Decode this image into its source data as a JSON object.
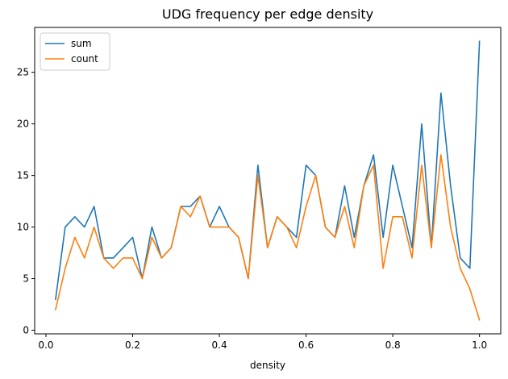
{
  "chart_data": {
    "type": "line",
    "title": "UDG frequency per edge density",
    "xlabel": "density",
    "ylabel": "",
    "xlim": [
      -0.026,
      1.049
    ],
    "ylim": [
      -0.35,
      29.35
    ],
    "xticks": [
      0.0,
      0.2,
      0.4,
      0.6,
      0.8,
      1.0
    ],
    "xtick_labels": [
      "0.0",
      "0.2",
      "0.4",
      "0.6",
      "0.8",
      "1.0"
    ],
    "yticks": [
      0,
      5,
      10,
      15,
      20,
      25
    ],
    "ytick_labels": [
      "0",
      "5",
      "10",
      "15",
      "20",
      "25"
    ],
    "grid": false,
    "legend_position": "top-left",
    "x": [
      0.0222,
      0.0444,
      0.0667,
      0.0889,
      0.1111,
      0.1333,
      0.1556,
      0.1778,
      0.2,
      0.2222,
      0.2444,
      0.2667,
      0.2889,
      0.3111,
      0.3333,
      0.3556,
      0.3778,
      0.4,
      0.4222,
      0.4444,
      0.4667,
      0.4889,
      0.5111,
      0.5333,
      0.5556,
      0.5778,
      0.6,
      0.6222,
      0.6444,
      0.6667,
      0.6889,
      0.7111,
      0.7333,
      0.7556,
      0.7778,
      0.8,
      0.8222,
      0.8444,
      0.8667,
      0.8889,
      0.9111,
      0.9333,
      0.9556,
      0.9778,
      1.0
    ],
    "series": [
      {
        "name": "sum",
        "color": "#1f77b4",
        "values": [
          3,
          10,
          11,
          10,
          12,
          7,
          7,
          8,
          9,
          5,
          10,
          7,
          8,
          12,
          12,
          13,
          10,
          12,
          10,
          9,
          5,
          16,
          8,
          11,
          10,
          9,
          16,
          15,
          10,
          9,
          14,
          9,
          14,
          17,
          9,
          16,
          12,
          8,
          20,
          8,
          23,
          14,
          7,
          6,
          28
        ]
      },
      {
        "name": "count",
        "color": "#ff7f0e",
        "values": [
          2,
          6,
          9,
          7,
          10,
          7,
          6,
          7,
          7,
          5,
          9,
          7,
          8,
          12,
          11,
          13,
          10,
          10,
          10,
          9,
          5,
          15,
          8,
          11,
          10,
          8,
          12,
          15,
          10,
          9,
          12,
          8,
          14,
          16,
          6,
          11,
          11,
          7,
          16,
          8,
          17,
          10,
          6,
          4,
          1
        ]
      }
    ]
  }
}
